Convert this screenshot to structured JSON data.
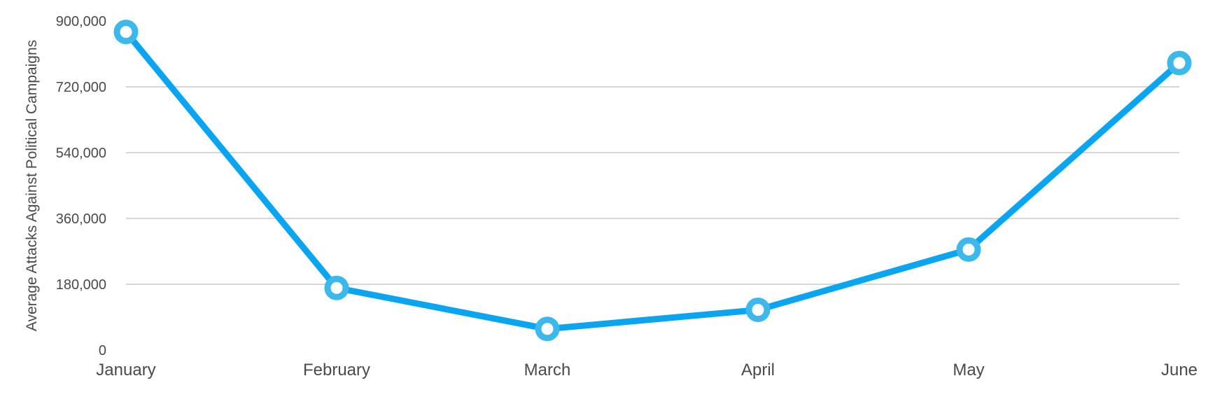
{
  "chart_data": {
    "type": "line",
    "title": "",
    "xlabel": "",
    "ylabel": "Average Attacks Against Political Campaigns",
    "categories": [
      "January",
      "February",
      "March",
      "April",
      "May",
      "June"
    ],
    "series": [
      {
        "values": [
          870000,
          170000,
          58000,
          110000,
          275000,
          785000
        ]
      }
    ],
    "ylim": [
      0,
      900000
    ],
    "yticks": [
      0,
      180000,
      360000,
      540000,
      720000,
      900000
    ],
    "ytick_labels": [
      "0",
      "180,000",
      "360,000",
      "540,000",
      "720,000",
      "900,000"
    ],
    "grid": true,
    "legend": "none",
    "colors": {
      "line": "#0aa5f0",
      "marker": "#3cb8ea",
      "grid": "#bdbdbd",
      "text": "#4a4a4a"
    }
  }
}
